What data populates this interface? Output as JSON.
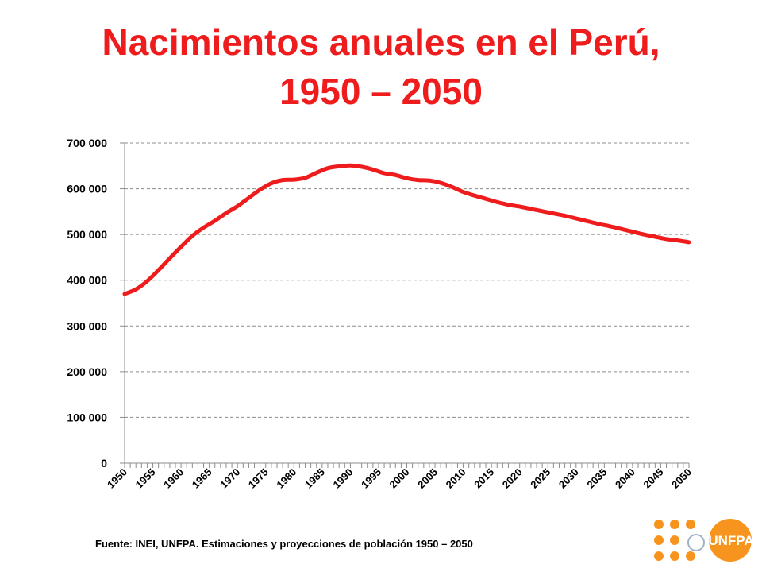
{
  "title_line1": "Nacimientos anuales en el Perú,",
  "title_line2": "1950 – 2050",
  "source": "Fuente: INEI, UNFPA. Estimaciones y proyecciones de población 1950 – 2050",
  "logo": {
    "text": "UNFPA",
    "color": "#f7941d",
    "icon": "un-emblem-icon"
  },
  "chart_data": {
    "type": "line",
    "title": "Nacimientos anuales en el Perú, 1950 – 2050",
    "xlabel": "",
    "ylabel": "",
    "xlim": [
      1950,
      2050
    ],
    "ylim": [
      0,
      700000
    ],
    "y_ticks": [
      0,
      100000,
      200000,
      300000,
      400000,
      500000,
      600000,
      700000
    ],
    "y_tick_labels": [
      "0",
      "100 000",
      "200 000",
      "300 000",
      "400 000",
      "500 000",
      "600 000",
      "700 000"
    ],
    "x_tick_labels": [
      "1950",
      "1955",
      "1960",
      "1965",
      "1970",
      "1975",
      "1980",
      "1985",
      "1990",
      "1995",
      "2000",
      "2005",
      "2010",
      "2015",
      "2020",
      "2025",
      "2030",
      "2035",
      "2040",
      "2045",
      "2050"
    ],
    "grid": "horizontal dashed",
    "line_color": "#ee1c1c",
    "series": [
      {
        "x": [
          1950,
          1952,
          1954,
          1956,
          1958,
          1960,
          1962,
          1964,
          1966,
          1968,
          1970,
          1972,
          1974,
          1976,
          1978,
          1980,
          1982,
          1984,
          1986,
          1988,
          1990,
          1992,
          1994,
          1996,
          1998,
          2000,
          2002,
          2004,
          2006,
          2008,
          2010,
          2012,
          2014,
          2016,
          2018,
          2020,
          2022,
          2024,
          2026,
          2028,
          2030,
          2032,
          2034,
          2036,
          2038,
          2040,
          2042,
          2044,
          2046,
          2048,
          2050
        ],
        "values": [
          370000,
          380000,
          398000,
          422000,
          448000,
          473000,
          497000,
          515000,
          530000,
          547000,
          562000,
          580000,
          598000,
          612000,
          619000,
          620000,
          624000,
          635000,
          645000,
          649000,
          651000,
          648000,
          642000,
          634000,
          630000,
          623000,
          619000,
          618000,
          613000,
          604000,
          593000,
          585000,
          578000,
          571000,
          565000,
          561000,
          556000,
          551000,
          546000,
          541000,
          535000,
          529000,
          523000,
          518000,
          512000,
          506000,
          500000,
          495000,
          490000,
          487000,
          483000
        ]
      }
    ]
  }
}
